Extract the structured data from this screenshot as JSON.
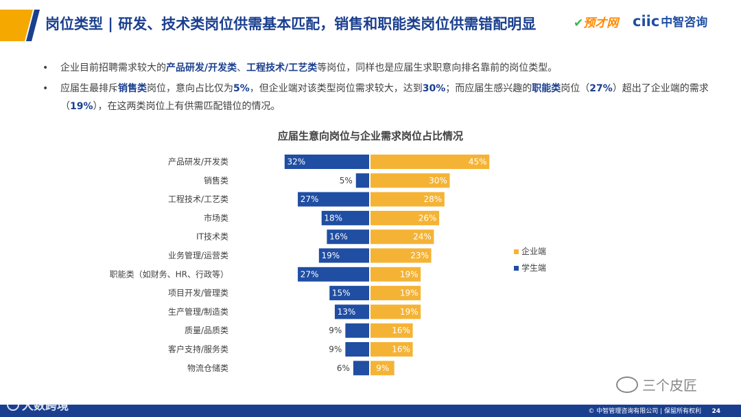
{
  "header": {
    "title": "岗位类型 | 研发、技术类岗位供需基本匹配，销售和职能类岗位供需错配明显",
    "logo_yucai": "预才网",
    "logo_ciic": "ciic",
    "logo_ciic_cn": "中智咨询",
    "bar_color": "#f5a800",
    "accent_color": "#1a3f8f"
  },
  "bullets": [
    {
      "parts": [
        {
          "text": "企业目前招聘需求较大的",
          "hl": false
        },
        {
          "text": "产品研发/开发类",
          "hl": true
        },
        {
          "text": "、",
          "hl": false
        },
        {
          "text": "工程技术/工艺类",
          "hl": true
        },
        {
          "text": "等岗位，同样也是应届生求职意向排名靠前的岗位类型。",
          "hl": false
        }
      ]
    },
    {
      "parts": [
        {
          "text": "应届生最排斥",
          "hl": false
        },
        {
          "text": "销售类",
          "hl": true
        },
        {
          "text": "岗位，意向占比仅为",
          "hl": false
        },
        {
          "text": "5%",
          "hl": true
        },
        {
          "text": "，但企业端对该类型岗位需求较大，达到",
          "hl": false
        },
        {
          "text": "30%",
          "hl": true
        },
        {
          "text": "；而应届生感兴趣的",
          "hl": false
        },
        {
          "text": "职能类",
          "hl": true
        },
        {
          "text": "岗位（",
          "hl": false
        },
        {
          "text": "27%",
          "hl": true
        },
        {
          "text": "）超出了企业端的需求（",
          "hl": false
        },
        {
          "text": "19%",
          "hl": true
        },
        {
          "text": "），在这两类岗位上有供需匹配错位的情况。",
          "hl": false
        }
      ]
    }
  ],
  "chart_data": {
    "type": "bar",
    "title": "应届生意向岗位与企业需求岗位占比情况",
    "categories": [
      "产品研发/开发类",
      "销售类",
      "工程技术/工艺类",
      "市场类",
      "IT技术类",
      "业务管理/运营类",
      "职能类（如财务、HR、行政等）",
      "项目开发/管理类",
      "生产管理/制造类",
      "质量/品质类",
      "客户支持/服务类",
      "物流仓储类"
    ],
    "series": [
      {
        "name": "学生端",
        "color": "#1f4ea3",
        "values": [
          32,
          5,
          27,
          18,
          16,
          19,
          27,
          15,
          13,
          9,
          9,
          6
        ]
      },
      {
        "name": "企业端",
        "color": "#f5b335",
        "values": [
          45,
          30,
          28,
          26,
          24,
          23,
          19,
          19,
          19,
          16,
          16,
          9
        ]
      }
    ],
    "unit": "%",
    "legend": [
      "企业端",
      "学生端"
    ]
  },
  "footer": {
    "copyright": "© 中智管理咨询有限公司 | 保留所有权利",
    "page": "24",
    "watermark_left": "大数跨境",
    "watermark_right": "三个皮匠"
  }
}
